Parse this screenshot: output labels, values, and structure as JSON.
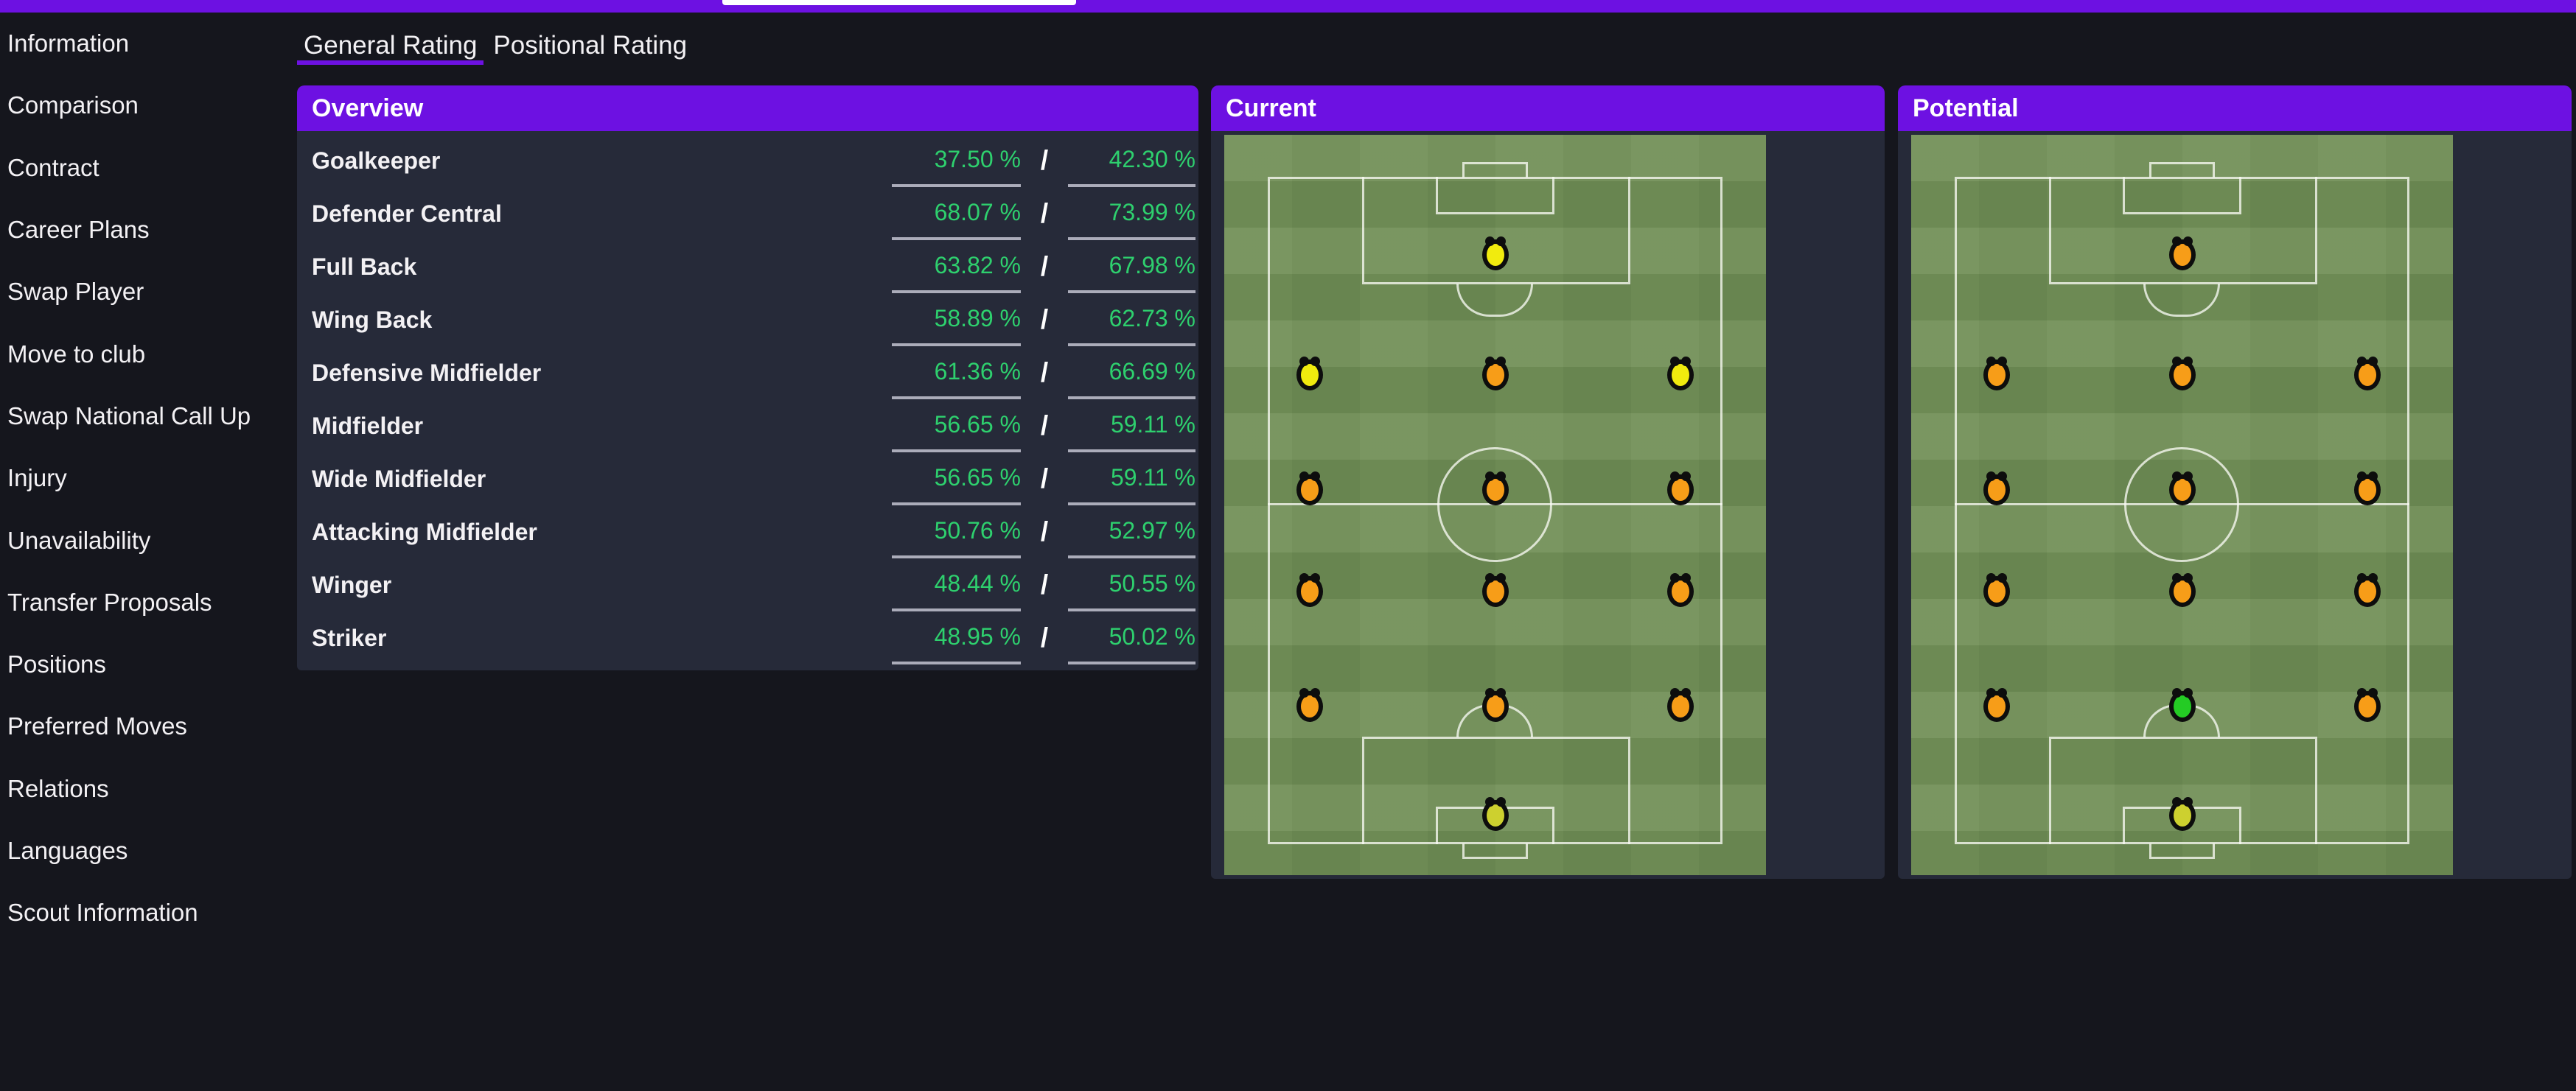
{
  "colors": {
    "accent_purple": "#6d11e2",
    "page_bg": "#15161d",
    "panel_bg": "#262a39",
    "pitch_green": "#6f8e55",
    "value_green": "#2ed06e",
    "underline_gray": "#abacba",
    "dot_yellow": "#f1eb0e",
    "dot_orange": "#f79d18",
    "dot_green": "#24cb24",
    "dot_keeper": "#cdd02f",
    "tab_indicator_white": "#ffffff"
  },
  "sidebar": {
    "items": [
      "Information",
      "Comparison",
      "Contract",
      "Career Plans",
      "Swap Player",
      "Move to club",
      "Swap National Call Up",
      "Injury",
      "Unavailability",
      "Transfer Proposals",
      "Positions",
      "Preferred Moves",
      "Relations",
      "Languages",
      "Scout Information"
    ]
  },
  "tabs": {
    "items": [
      {
        "label": "General Rating",
        "active": true
      },
      {
        "label": "Positional Rating",
        "active": false
      }
    ]
  },
  "overview": {
    "title": "Overview",
    "separator": "/",
    "rows": [
      {
        "position": "Goalkeeper",
        "current": "37.50 %",
        "potential": "42.30 %"
      },
      {
        "position": "Defender Central",
        "current": "68.07 %",
        "potential": "73.99 %"
      },
      {
        "position": "Full Back",
        "current": "63.82 %",
        "potential": "67.98 %"
      },
      {
        "position": "Wing Back",
        "current": "58.89 %",
        "potential": "62.73 %"
      },
      {
        "position": "Defensive Midfielder",
        "current": "61.36 %",
        "potential": "66.69 %"
      },
      {
        "position": "Midfielder",
        "current": "56.65 %",
        "potential": "59.11 %"
      },
      {
        "position": "Wide Midfielder",
        "current": "56.65 %",
        "potential": "59.11 %"
      },
      {
        "position": "Attacking Midfielder",
        "current": "50.76 %",
        "potential": "52.97 %"
      },
      {
        "position": "Winger",
        "current": "48.44 %",
        "potential": "50.55 %"
      },
      {
        "position": "Striker",
        "current": "48.95 %",
        "potential": "50.02 %"
      }
    ]
  },
  "pitch_panels": [
    {
      "title": "Current",
      "dots": [
        {
          "pos": "striker",
          "row": "st",
          "col": "c",
          "color": "yellow"
        },
        {
          "pos": "am-left",
          "row": "am",
          "col": "l",
          "color": "yellow"
        },
        {
          "pos": "am-centre",
          "row": "am",
          "col": "c",
          "color": "orange"
        },
        {
          "pos": "am-right",
          "row": "am",
          "col": "r",
          "color": "yellow"
        },
        {
          "pos": "mid-left",
          "row": "m",
          "col": "l",
          "color": "orange"
        },
        {
          "pos": "mid-centre",
          "row": "m",
          "col": "c",
          "color": "orange"
        },
        {
          "pos": "mid-right",
          "row": "m",
          "col": "r",
          "color": "orange"
        },
        {
          "pos": "dm-left",
          "row": "dm",
          "col": "l",
          "color": "orange"
        },
        {
          "pos": "dm-centre",
          "row": "dm",
          "col": "c",
          "color": "orange"
        },
        {
          "pos": "dm-right",
          "row": "dm",
          "col": "r",
          "color": "orange"
        },
        {
          "pos": "def-left",
          "row": "d",
          "col": "l",
          "color": "orange"
        },
        {
          "pos": "def-centre",
          "row": "d",
          "col": "c",
          "color": "orange"
        },
        {
          "pos": "def-right",
          "row": "d",
          "col": "r",
          "color": "orange"
        },
        {
          "pos": "goalkeeper",
          "row": "gk",
          "col": "c",
          "color": "keeper"
        }
      ]
    },
    {
      "title": "Potential",
      "dots": [
        {
          "pos": "striker",
          "row": "st",
          "col": "c",
          "color": "orange"
        },
        {
          "pos": "am-left",
          "row": "am",
          "col": "l",
          "color": "orange"
        },
        {
          "pos": "am-centre",
          "row": "am",
          "col": "c",
          "color": "orange"
        },
        {
          "pos": "am-right",
          "row": "am",
          "col": "r",
          "color": "orange"
        },
        {
          "pos": "mid-left",
          "row": "m",
          "col": "l",
          "color": "orange"
        },
        {
          "pos": "mid-centre",
          "row": "m",
          "col": "c",
          "color": "orange"
        },
        {
          "pos": "mid-right",
          "row": "m",
          "col": "r",
          "color": "orange"
        },
        {
          "pos": "dm-left",
          "row": "dm",
          "col": "l",
          "color": "orange"
        },
        {
          "pos": "dm-centre",
          "row": "dm",
          "col": "c",
          "color": "orange"
        },
        {
          "pos": "dm-right",
          "row": "dm",
          "col": "r",
          "color": "orange"
        },
        {
          "pos": "def-left",
          "row": "d",
          "col": "l",
          "color": "orange"
        },
        {
          "pos": "def-centre",
          "row": "d",
          "col": "c",
          "color": "green"
        },
        {
          "pos": "def-right",
          "row": "d",
          "col": "r",
          "color": "orange"
        },
        {
          "pos": "goalkeeper",
          "row": "gk",
          "col": "c",
          "color": "keeper"
        }
      ]
    }
  ]
}
